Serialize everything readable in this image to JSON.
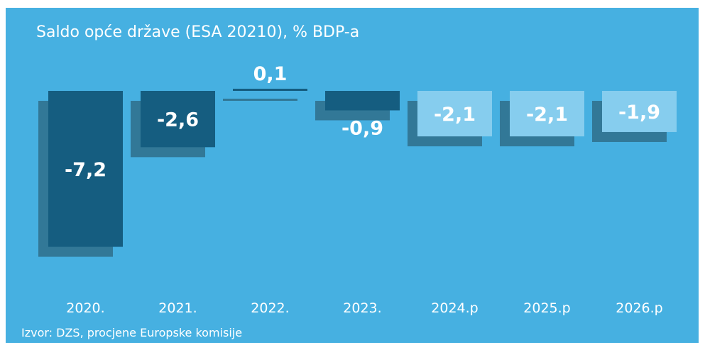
{
  "chart_data": {
    "type": "bar",
    "title": "Saldo opće države (ESA 20210), % BDP-a",
    "categories": [
      "2020.",
      "2021.",
      "2022.",
      "2023.",
      "2024.p",
      "2025.p",
      "2026.p"
    ],
    "values": [
      -7.2,
      -2.6,
      0.1,
      -0.9,
      -2.1,
      -2.1,
      -1.9
    ],
    "value_labels": [
      "-7,2",
      "-2,6",
      "0,1",
      "-0,9",
      "-2,1",
      "-2,1",
      "-1,9"
    ],
    "projected": [
      false,
      false,
      false,
      false,
      true,
      true,
      true
    ],
    "xlabel": "",
    "ylabel": "",
    "ylim": [
      -7.2,
      0.1
    ],
    "grid": false,
    "legend": "none",
    "source": "Izvor: DZS, procjene Europske komisije"
  },
  "colors": {
    "background": "#46b0e1",
    "actual_bar": "#155d80",
    "projected_bar": "#86cdee",
    "shadow": "#2f6f8a",
    "text": "#ffffff"
  }
}
